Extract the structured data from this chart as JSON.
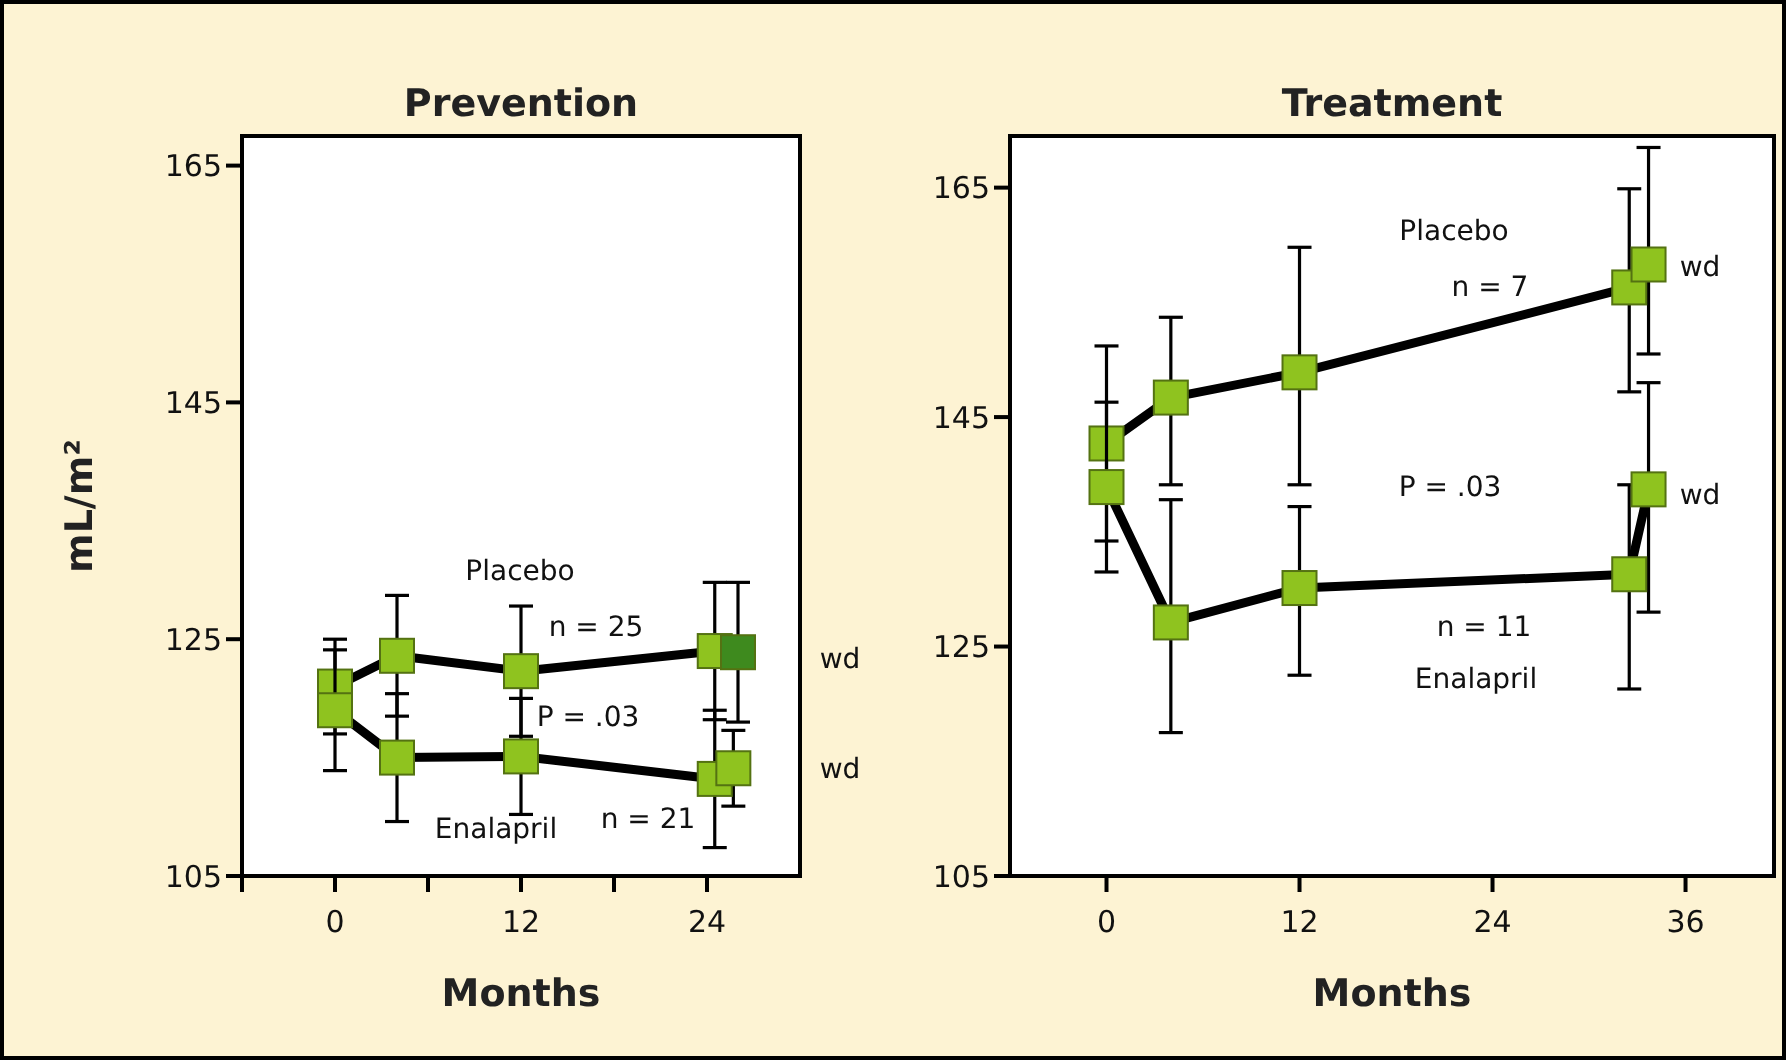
{
  "chart_data": [
    {
      "type": "line",
      "title": "Prevention",
      "xlabel": "Months",
      "ylabel": "mL/m²",
      "marker": "square",
      "line_style": "solid",
      "grid": false,
      "xlim": [
        -6,
        30
      ],
      "xticks": [
        {
          "value": -6,
          "label": null
        },
        0,
        {
          "value": 6,
          "label": null
        },
        12,
        {
          "value": 18,
          "label": null
        },
        24
      ],
      "ylim": [
        105,
        167.5
      ],
      "yticks": [
        105,
        125,
        145,
        165
      ],
      "series": [
        {
          "name": "Placebo",
          "color": "#8fc31f",
          "colors": [
            "#8fc31f",
            "#8fc31f",
            "#8fc31f",
            "#8fc31f",
            "#3e8a1e"
          ],
          "x": [
            0,
            4,
            12,
            24.5,
            26
          ],
          "values": [
            121.0,
            123.6,
            122.3,
            124.0,
            123.9
          ],
          "errors": [
            [
              117,
              125
            ],
            [
              118.5,
              128.7
            ],
            [
              116.8,
              127.8
            ],
            [
              118.2,
              129.8
            ],
            [
              118,
              129.8
            ]
          ]
        },
        {
          "name": "Enalapril",
          "color": "#8fc31f",
          "x": [
            0,
            4,
            12,
            24.5,
            25.7
          ],
          "values": [
            119.0,
            115.0,
            115.1,
            113.2,
            114.1
          ],
          "errors": [
            [
              113.9,
              124.1
            ],
            [
              109.6,
              120.4
            ],
            [
              110.2,
              120.0
            ],
            [
              107.4,
              119.0
            ],
            [
              110.9,
              117.3
            ]
          ]
        }
      ],
      "annotations": [
        "n = 25",
        "P = .03",
        "n = 21",
        "wd",
        "wd"
      ]
    },
    {
      "type": "line",
      "title": "Treatment",
      "xlabel": "Months",
      "marker": "square",
      "line_style": "solid",
      "grid": false,
      "xlim": [
        -6,
        41.5
      ],
      "xticks": [
        0,
        12,
        24,
        36
      ],
      "ylim": [
        105,
        169.5
      ],
      "yticks": [
        105,
        125,
        145,
        165
      ],
      "series": [
        {
          "name": "Placebo",
          "color": "#8fc31f",
          "x": [
            0,
            4,
            12,
            32.5,
            33.7
          ],
          "values": [
            142.7,
            146.7,
            148.9,
            156.3,
            158.3
          ],
          "errors": [
            [
              134.2,
              151.2
            ],
            [
              139.1,
              153.7
            ],
            [
              139.1,
              159.8
            ],
            [
              147.2,
              164.9
            ],
            [
              150.5,
              168.5
            ]
          ]
        },
        {
          "name": "Enalapril",
          "color": "#8fc31f",
          "x": [
            0,
            4,
            12,
            32.5,
            33.7
          ],
          "values": [
            138.9,
            127.1,
            130.1,
            131.3,
            138.7
          ],
          "errors": [
            [
              131.5,
              146.3
            ],
            [
              117.5,
              137.8
            ],
            [
              122.5,
              137.2
            ],
            [
              121.3,
              139.1
            ],
            [
              128,
              148
            ]
          ]
        }
      ],
      "annotations": [
        "n = 7",
        "P = .03",
        "n = 11",
        "wd",
        "wd"
      ]
    }
  ]
}
